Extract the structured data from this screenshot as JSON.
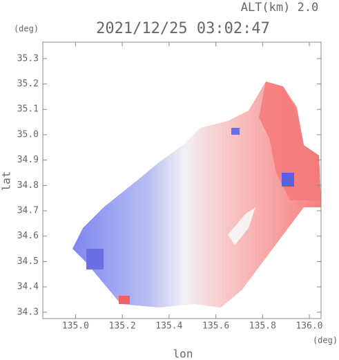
{
  "chart_data": {
    "type": "map",
    "title": "2021/12/25 03:02:47",
    "altitude_label": "ALT(km) 2.0",
    "y_unit": "(deg)",
    "x_unit": "(deg)",
    "ylabel": "lat",
    "xlabel": "lon",
    "xlim": [
      134.86,
      136.05
    ],
    "ylim": [
      34.275,
      35.365
    ],
    "xticks": [
      {
        "value": 135,
        "label": "135.0"
      },
      135.2,
      135.4,
      135.6,
      135.8,
      {
        "value": 136,
        "label": "136.0"
      }
    ],
    "yticks": [
      34.3,
      34.4,
      34.5,
      34.6,
      34.7,
      34.8,
      34.9,
      {
        "value": 35,
        "label": "35.0"
      },
      35.1,
      35.2,
      35.3
    ]
  }
}
